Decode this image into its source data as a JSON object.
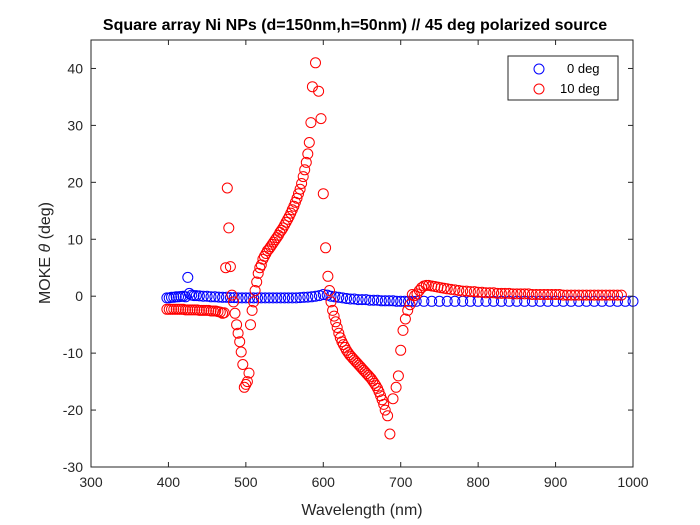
{
  "chart_data": {
    "type": "scatter",
    "title": "Square array Ni NPs (d=150nm,h=50nm) // 45 deg polarized source",
    "xlabel": "Wavelength (nm)",
    "ylabel_prefix": "MOKE ",
    "ylabel_symbol": "θ",
    "ylabel_suffix": " (deg)",
    "xlim": [
      300,
      1000
    ],
    "ylim": [
      -30,
      45
    ],
    "xticks": [
      "300",
      "400",
      "500",
      "600",
      "700",
      "800",
      "900",
      "1000"
    ],
    "yticks": [
      "-30",
      "-20",
      "-10",
      "0",
      "10",
      "20",
      "30",
      "40"
    ],
    "legend_position": "top-right",
    "series": [
      {
        "name": "0 deg",
        "color": "#0000ff",
        "marker": "open-circle",
        "points": [
          [
            398,
            -0.3
          ],
          [
            401,
            -0.3
          ],
          [
            404,
            -0.2
          ],
          [
            407,
            -0.2
          ],
          [
            410,
            -0.1
          ],
          [
            413,
            -0.1
          ],
          [
            416,
            -0.05
          ],
          [
            419,
            0
          ],
          [
            422,
            -0.1
          ],
          [
            425,
            3.3
          ],
          [
            427,
            0.5
          ],
          [
            430,
            0.2
          ],
          [
            433,
            0.1
          ],
          [
            436,
            0.1
          ],
          [
            440,
            0.05
          ],
          [
            445,
            0
          ],
          [
            450,
            0
          ],
          [
            455,
            -0.1
          ],
          [
            460,
            -0.1
          ],
          [
            465,
            -0.15
          ],
          [
            470,
            -0.2
          ],
          [
            475,
            -0.2
          ],
          [
            480,
            -0.25
          ],
          [
            485,
            -0.25
          ],
          [
            490,
            -0.3
          ],
          [
            495,
            -0.3
          ],
          [
            500,
            -0.3
          ],
          [
            505,
            -0.3
          ],
          [
            510,
            -0.3
          ],
          [
            515,
            -0.3
          ],
          [
            520,
            -0.3
          ],
          [
            525,
            -0.3
          ],
          [
            530,
            -0.3
          ],
          [
            535,
            -0.3
          ],
          [
            540,
            -0.3
          ],
          [
            545,
            -0.3
          ],
          [
            550,
            -0.3
          ],
          [
            555,
            -0.3
          ],
          [
            560,
            -0.3
          ],
          [
            565,
            -0.3
          ],
          [
            570,
            -0.25
          ],
          [
            575,
            -0.2
          ],
          [
            580,
            -0.15
          ],
          [
            585,
            -0.1
          ],
          [
            590,
            0
          ],
          [
            595,
            0.1
          ],
          [
            600,
            0.3
          ],
          [
            605,
            0.2
          ],
          [
            610,
            0
          ],
          [
            615,
            -0.1
          ],
          [
            620,
            -0.2
          ],
          [
            625,
            -0.3
          ],
          [
            630,
            -0.4
          ],
          [
            635,
            -0.5
          ],
          [
            640,
            -0.5
          ],
          [
            645,
            -0.6
          ],
          [
            650,
            -0.6
          ],
          [
            655,
            -0.6
          ],
          [
            660,
            -0.7
          ],
          [
            665,
            -0.7
          ],
          [
            670,
            -0.7
          ],
          [
            675,
            -0.8
          ],
          [
            680,
            -0.8
          ],
          [
            685,
            -0.8
          ],
          [
            690,
            -0.8
          ],
          [
            695,
            -0.9
          ],
          [
            700,
            -0.9
          ],
          [
            705,
            -0.9
          ],
          [
            710,
            -0.9
          ],
          [
            715,
            -0.9
          ],
          [
            720,
            -0.9
          ],
          [
            730,
            -0.9
          ],
          [
            740,
            -0.9
          ],
          [
            750,
            -0.9
          ],
          [
            760,
            -0.9
          ],
          [
            770,
            -0.9
          ],
          [
            780,
            -0.9
          ],
          [
            790,
            -0.9
          ],
          [
            800,
            -0.9
          ],
          [
            810,
            -0.9
          ],
          [
            820,
            -0.9
          ],
          [
            830,
            -0.9
          ],
          [
            840,
            -0.9
          ],
          [
            850,
            -0.9
          ],
          [
            860,
            -0.9
          ],
          [
            870,
            -0.9
          ],
          [
            880,
            -0.9
          ],
          [
            890,
            -0.9
          ],
          [
            900,
            -0.9
          ],
          [
            910,
            -0.9
          ],
          [
            920,
            -0.9
          ],
          [
            930,
            -0.9
          ],
          [
            940,
            -0.9
          ],
          [
            950,
            -0.9
          ],
          [
            960,
            -0.9
          ],
          [
            970,
            -0.9
          ],
          [
            980,
            -0.9
          ],
          [
            990,
            -0.9
          ],
          [
            1000,
            -0.9
          ]
        ]
      },
      {
        "name": "10 deg",
        "color": "#ff0000",
        "marker": "open-circle",
        "points": [
          [
            398,
            -2.3
          ],
          [
            401,
            -2.3
          ],
          [
            404,
            -2.3
          ],
          [
            407,
            -2.3
          ],
          [
            410,
            -2.3
          ],
          [
            413,
            -2.3
          ],
          [
            416,
            -2.3
          ],
          [
            419,
            -2.3
          ],
          [
            422,
            -2.4
          ],
          [
            425,
            -2.4
          ],
          [
            428,
            -2.4
          ],
          [
            431,
            -2.4
          ],
          [
            434,
            -2.4
          ],
          [
            437,
            -2.4
          ],
          [
            440,
            -2.5
          ],
          [
            443,
            -2.5
          ],
          [
            446,
            -2.5
          ],
          [
            449,
            -2.5
          ],
          [
            452,
            -2.5
          ],
          [
            455,
            -2.6
          ],
          [
            458,
            -2.6
          ],
          [
            461,
            -2.6
          ],
          [
            464,
            -2.7
          ],
          [
            467,
            -2.8
          ],
          [
            470,
            -3.0
          ],
          [
            472,
            -2.9
          ],
          [
            474,
            5.0
          ],
          [
            476,
            19.0
          ],
          [
            478,
            12.0
          ],
          [
            480,
            5.2
          ],
          [
            482,
            0.2
          ],
          [
            484,
            -1.0
          ],
          [
            486,
            -3.0
          ],
          [
            488,
            -5.0
          ],
          [
            490,
            -6.5
          ],
          [
            492,
            -8.0
          ],
          [
            494,
            -9.8
          ],
          [
            496,
            -12.0
          ],
          [
            498,
            -16.0
          ],
          [
            500,
            -15.5
          ],
          [
            502,
            -15.0
          ],
          [
            504,
            -13.5
          ],
          [
            506,
            -5.0
          ],
          [
            508,
            -2.5
          ],
          [
            510,
            -1.0
          ],
          [
            512,
            1.0
          ],
          [
            514,
            2.5
          ],
          [
            516,
            4.0
          ],
          [
            518,
            5.0
          ],
          [
            520,
            5.5
          ],
          [
            522,
            6.5
          ],
          [
            524,
            7.0
          ],
          [
            526,
            7.5
          ],
          [
            528,
            8.0
          ],
          [
            530,
            8.3
          ],
          [
            532,
            8.7
          ],
          [
            534,
            9.1
          ],
          [
            536,
            9.5
          ],
          [
            538,
            9.9
          ],
          [
            540,
            10.3
          ],
          [
            542,
            10.7
          ],
          [
            544,
            11.2
          ],
          [
            546,
            11.6
          ],
          [
            548,
            12.0
          ],
          [
            550,
            12.5
          ],
          [
            552,
            13.0
          ],
          [
            554,
            13.5
          ],
          [
            556,
            14.0
          ],
          [
            558,
            14.6
          ],
          [
            560,
            15.2
          ],
          [
            562,
            15.8
          ],
          [
            564,
            16.5
          ],
          [
            566,
            17.2
          ],
          [
            568,
            18.0
          ],
          [
            570,
            18.8
          ],
          [
            572,
            19.8
          ],
          [
            574,
            21.0
          ],
          [
            576,
            22.2
          ],
          [
            578,
            23.5
          ],
          [
            580,
            25.0
          ],
          [
            582,
            27.0
          ],
          [
            584,
            30.5
          ],
          [
            586,
            36.8
          ],
          [
            590,
            41.0
          ],
          [
            594,
            36.0
          ],
          [
            597,
            31.2
          ],
          [
            600,
            18.0
          ],
          [
            603,
            8.5
          ],
          [
            606,
            3.5
          ],
          [
            608,
            1.0
          ],
          [
            610,
            -1.0
          ],
          [
            612,
            -2.5
          ],
          [
            614,
            -3.5
          ],
          [
            616,
            -4.5
          ],
          [
            618,
            -5.5
          ],
          [
            620,
            -6.5
          ],
          [
            622,
            -7.3
          ],
          [
            624,
            -8.0
          ],
          [
            626,
            -8.5
          ],
          [
            628,
            -9.0
          ],
          [
            630,
            -9.5
          ],
          [
            632,
            -9.9
          ],
          [
            634,
            -10.3
          ],
          [
            636,
            -10.6
          ],
          [
            638,
            -10.9
          ],
          [
            640,
            -11.2
          ],
          [
            642,
            -11.5
          ],
          [
            644,
            -11.8
          ],
          [
            646,
            -12.1
          ],
          [
            648,
            -12.4
          ],
          [
            650,
            -12.7
          ],
          [
            652,
            -13.0
          ],
          [
            654,
            -13.3
          ],
          [
            656,
            -13.6
          ],
          [
            658,
            -13.9
          ],
          [
            660,
            -14.2
          ],
          [
            662,
            -14.5
          ],
          [
            664,
            -14.9
          ],
          [
            666,
            -15.3
          ],
          [
            668,
            -15.7
          ],
          [
            670,
            -16.2
          ],
          [
            672,
            -16.8
          ],
          [
            674,
            -17.5
          ],
          [
            676,
            -18.2
          ],
          [
            678,
            -19.0
          ],
          [
            680,
            -20.0
          ],
          [
            683,
            -21.0
          ],
          [
            686,
            -24.2
          ],
          [
            690,
            -18.0
          ],
          [
            694,
            -16.0
          ],
          [
            697,
            -14.0
          ],
          [
            700,
            -9.5
          ],
          [
            703,
            -6.0
          ],
          [
            706,
            -4.0
          ],
          [
            709,
            -2.5
          ],
          [
            712,
            -1.5
          ],
          [
            715,
            0.3
          ],
          [
            718,
            0.1
          ],
          [
            721,
            0.4
          ],
          [
            724,
            1.0
          ],
          [
            727,
            1.5
          ],
          [
            730,
            1.8
          ],
          [
            733,
            1.9
          ],
          [
            736,
            1.9
          ],
          [
            740,
            1.8
          ],
          [
            744,
            1.7
          ],
          [
            748,
            1.6
          ],
          [
            752,
            1.5
          ],
          [
            756,
            1.4
          ],
          [
            760,
            1.3
          ],
          [
            765,
            1.2
          ],
          [
            770,
            1.1
          ],
          [
            775,
            1.0
          ],
          [
            780,
            0.9
          ],
          [
            785,
            0.9
          ],
          [
            790,
            0.8
          ],
          [
            795,
            0.8
          ],
          [
            800,
            0.7
          ],
          [
            805,
            0.7
          ],
          [
            810,
            0.6
          ],
          [
            815,
            0.6
          ],
          [
            820,
            0.6
          ],
          [
            825,
            0.5
          ],
          [
            830,
            0.5
          ],
          [
            835,
            0.5
          ],
          [
            840,
            0.5
          ],
          [
            845,
            0.4
          ],
          [
            850,
            0.4
          ],
          [
            855,
            0.4
          ],
          [
            860,
            0.4
          ],
          [
            865,
            0.4
          ],
          [
            870,
            0.3
          ],
          [
            875,
            0.3
          ],
          [
            880,
            0.3
          ],
          [
            885,
            0.3
          ],
          [
            890,
            0.3
          ],
          [
            895,
            0.3
          ],
          [
            900,
            0.3
          ],
          [
            905,
            0.3
          ],
          [
            910,
            0.2
          ],
          [
            915,
            0.2
          ],
          [
            920,
            0.2
          ],
          [
            925,
            0.2
          ],
          [
            930,
            0.2
          ],
          [
            935,
            0.2
          ],
          [
            940,
            0.2
          ],
          [
            945,
            0.2
          ],
          [
            950,
            0.2
          ],
          [
            955,
            0.2
          ],
          [
            960,
            0.2
          ],
          [
            965,
            0.2
          ],
          [
            970,
            0.2
          ],
          [
            975,
            0.2
          ],
          [
            980,
            0.2
          ],
          [
            985,
            0.2
          ]
        ]
      }
    ]
  }
}
